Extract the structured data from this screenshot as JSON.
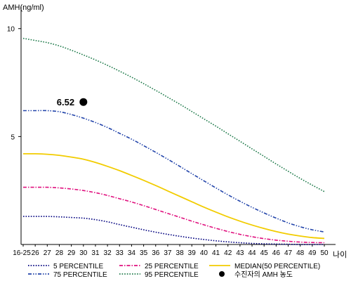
{
  "chart_data": {
    "type": "line",
    "ylabel": "AMH(ng/ml)",
    "xlabel": "나이",
    "ylim": [
      0,
      11
    ],
    "y_ticks": [
      5,
      10
    ],
    "x": [
      "16-25",
      "26",
      "27",
      "28",
      "29",
      "30",
      "31",
      "32",
      "33",
      "34",
      "35",
      "36",
      "37",
      "38",
      "39",
      "40",
      "41",
      "42",
      "43",
      "44",
      "45",
      "46",
      "47",
      "48",
      "49",
      "50"
    ],
    "series": [
      {
        "name": "5 PERCENTILE",
        "color": "#00007f",
        "dash": "dotted",
        "values": [
          1.3,
          1.3,
          1.3,
          1.28,
          1.25,
          1.22,
          1.15,
          1.05,
          0.92,
          0.8,
          0.68,
          0.57,
          0.47,
          0.38,
          0.3,
          0.23,
          0.17,
          0.12,
          0.08,
          0.05,
          0.03,
          0.02,
          0.01,
          0.0,
          0.0,
          0.0
        ]
      },
      {
        "name": "25 PERCENTILE",
        "color": "#e0107e",
        "dash": "dashdot",
        "values": [
          2.65,
          2.65,
          2.65,
          2.62,
          2.57,
          2.5,
          2.4,
          2.27,
          2.12,
          1.97,
          1.8,
          1.62,
          1.44,
          1.26,
          1.08,
          0.91,
          0.75,
          0.6,
          0.47,
          0.36,
          0.27,
          0.2,
          0.15,
          0.11,
          0.09,
          0.08
        ]
      },
      {
        "name": "MEDIAN(50 PERCENTILE)",
        "color": "#f2cc00",
        "dash": "solid",
        "values": [
          4.2,
          4.2,
          4.18,
          4.13,
          4.05,
          3.95,
          3.8,
          3.62,
          3.42,
          3.2,
          2.97,
          2.73,
          2.48,
          2.23,
          1.98,
          1.73,
          1.5,
          1.28,
          1.08,
          0.9,
          0.74,
          0.6,
          0.48,
          0.39,
          0.32,
          0.28
        ]
      },
      {
        "name": "75 PERCENTILE",
        "color": "#2244aa",
        "dash": "dashdotdot",
        "values": [
          6.2,
          6.2,
          6.2,
          6.15,
          6.02,
          5.85,
          5.65,
          5.42,
          5.15,
          4.88,
          4.58,
          4.27,
          3.95,
          3.62,
          3.28,
          2.95,
          2.62,
          2.3,
          2.0,
          1.72,
          1.46,
          1.22,
          1.0,
          0.82,
          0.68,
          0.58
        ]
      },
      {
        "name": "95 PERCENTILE",
        "color": "#1e7a4a",
        "dash": "dotted",
        "values": [
          9.55,
          9.45,
          9.35,
          9.2,
          9.0,
          8.78,
          8.55,
          8.3,
          8.03,
          7.75,
          7.45,
          7.14,
          6.82,
          6.5,
          6.16,
          5.82,
          5.48,
          5.13,
          4.78,
          4.43,
          4.08,
          3.73,
          3.39,
          3.06,
          2.75,
          2.45
        ]
      }
    ],
    "annotation": {
      "name": "수진자의 AMH 농도",
      "label": "6.52",
      "x": "30",
      "y": 6.6
    },
    "legend_order": [
      "5 PERCENTILE",
      "25 PERCENTILE",
      "MEDIAN(50 PERCENTILE)",
      "75 PERCENTILE",
      "95 PERCENTILE",
      "수진자의 AMH 농도"
    ]
  }
}
